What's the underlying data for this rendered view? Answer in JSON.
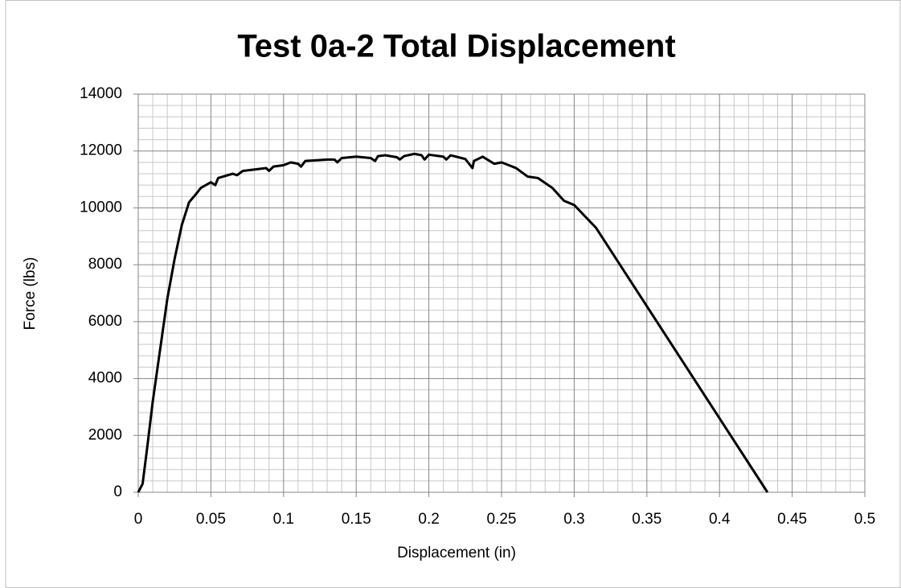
{
  "chart_data": {
    "type": "line",
    "title": "Test 0a-2 Total Displacement",
    "x_label": "Displacement (in)",
    "y_label": "Force (lbs)",
    "xlim": [
      0,
      0.5
    ],
    "xticks": [
      0,
      0.05,
      0.1,
      0.15,
      0.2,
      0.25,
      0.3,
      0.35,
      0.4,
      0.45,
      0.5
    ],
    "ylim": [
      0,
      14000
    ],
    "yticks": [
      0,
      2000,
      4000,
      6000,
      8000,
      10000,
      12000,
      14000
    ],
    "grid": true,
    "series": [
      {
        "color": "#000000",
        "x": [
          0,
          0.003,
          0.006,
          0.01,
          0.015,
          0.02,
          0.025,
          0.03,
          0.035,
          0.04,
          0.043,
          0.05,
          0.053,
          0.055,
          0.065,
          0.068,
          0.072,
          0.08,
          0.088,
          0.09,
          0.093,
          0.1,
          0.105,
          0.11,
          0.112,
          0.115,
          0.125,
          0.13,
          0.135,
          0.137,
          0.14,
          0.15,
          0.16,
          0.163,
          0.165,
          0.17,
          0.178,
          0.18,
          0.183,
          0.19,
          0.195,
          0.197,
          0.2,
          0.21,
          0.212,
          0.215,
          0.225,
          0.23,
          0.231,
          0.237,
          0.245,
          0.25,
          0.26,
          0.268,
          0.275,
          0.285,
          0.293,
          0.3,
          0.315,
          0.433
        ],
        "values": [
          0,
          300,
          1500,
          3200,
          5000,
          6800,
          8200,
          9400,
          10200,
          10500,
          10700,
          10900,
          10800,
          11050,
          11200,
          11150,
          11300,
          11350,
          11400,
          11300,
          11450,
          11500,
          11600,
          11550,
          11450,
          11650,
          11680,
          11700,
          11700,
          11600,
          11750,
          11800,
          11750,
          11650,
          11820,
          11850,
          11780,
          11700,
          11820,
          11900,
          11850,
          11700,
          11870,
          11800,
          11700,
          11850,
          11720,
          11400,
          11650,
          11800,
          11550,
          11600,
          11400,
          11100,
          11050,
          10700,
          10250,
          10100,
          9300,
          0
        ]
      }
    ]
  }
}
